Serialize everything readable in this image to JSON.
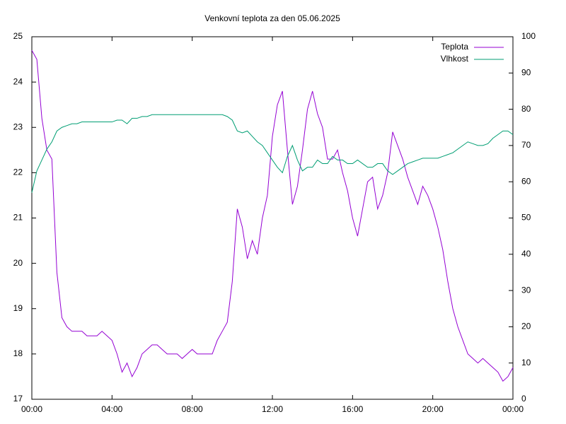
{
  "chart_data": {
    "type": "line",
    "title": "Venkovní teplota za den 05.06.2025",
    "x": [
      0,
      0.25,
      0.5,
      0.75,
      1,
      1.25,
      1.5,
      1.75,
      2,
      2.25,
      2.5,
      2.75,
      3,
      3.25,
      3.5,
      3.75,
      4,
      4.25,
      4.5,
      4.75,
      5,
      5.25,
      5.5,
      5.75,
      6,
      6.25,
      6.5,
      6.75,
      7,
      7.25,
      7.5,
      7.75,
      8,
      8.25,
      8.5,
      8.75,
      9,
      9.25,
      9.5,
      9.75,
      10,
      10.25,
      10.5,
      10.75,
      11,
      11.25,
      11.5,
      11.75,
      12,
      12.25,
      12.5,
      12.75,
      13,
      13.25,
      13.5,
      13.75,
      14,
      14.25,
      14.5,
      14.75,
      15,
      15.25,
      15.5,
      15.75,
      16,
      16.25,
      16.5,
      16.75,
      17,
      17.25,
      17.5,
      17.75,
      18,
      18.25,
      18.5,
      18.75,
      19,
      19.25,
      19.5,
      19.75,
      20,
      20.25,
      20.5,
      20.75,
      21,
      21.25,
      21.5,
      21.75,
      22,
      22.25,
      22.5,
      22.75,
      23,
      23.25,
      23.5,
      23.75,
      24
    ],
    "series": [
      {
        "name": "Teplota",
        "color": "#9400d3",
        "values": [
          24.7,
          24.5,
          23.2,
          22.5,
          22.3,
          19.8,
          18.8,
          18.6,
          18.5,
          18.5,
          18.5,
          18.4,
          18.4,
          18.4,
          18.5,
          18.4,
          18.3,
          18.0,
          17.6,
          17.8,
          17.5,
          17.7,
          18.0,
          18.1,
          18.2,
          18.2,
          18.1,
          18.0,
          18.0,
          18.0,
          17.9,
          18.0,
          18.1,
          18.0,
          18.0,
          18.0,
          18.0,
          18.3,
          18.5,
          18.7,
          19.6,
          21.2,
          20.8,
          20.1,
          20.5,
          20.2,
          21.0,
          21.5,
          22.8,
          23.5,
          23.8,
          22.5,
          21.3,
          21.7,
          22.5,
          23.4,
          23.8,
          23.3,
          23.0,
          22.3,
          22.3,
          22.5,
          22.0,
          21.6,
          21.0,
          20.6,
          21.2,
          21.8,
          21.9,
          21.2,
          21.5,
          22.0,
          22.9,
          22.6,
          22.3,
          21.9,
          21.6,
          21.3,
          21.7,
          21.5,
          21.2,
          20.8,
          20.3,
          19.6,
          19.0,
          18.6,
          18.3,
          18.0,
          17.9,
          17.8,
          17.9,
          17.8,
          17.7,
          17.6,
          17.4,
          17.5,
          17.7
        ]
      },
      {
        "name": "Vlhkost",
        "color": "#009e73",
        "axis": "y2",
        "values": [
          57,
          63,
          66,
          69,
          71,
          74,
          75,
          75.5,
          76,
          76,
          76.5,
          76.5,
          76.5,
          76.5,
          76.5,
          76.5,
          76.5,
          77,
          77,
          76,
          77.5,
          77.5,
          78,
          78,
          78.5,
          78.5,
          78.5,
          78.5,
          78.5,
          78.5,
          78.5,
          78.5,
          78.5,
          78.5,
          78.5,
          78.5,
          78.5,
          78.5,
          78.5,
          78,
          77,
          74,
          73.5,
          74,
          72.5,
          71,
          70,
          68,
          66,
          64,
          62.5,
          67,
          70,
          66,
          63,
          64,
          64,
          66,
          65,
          65,
          67,
          66,
          66,
          65,
          65,
          66,
          65,
          64,
          64,
          65,
          65,
          63,
          62,
          63,
          64,
          65,
          65.5,
          66,
          66.5,
          66.5,
          66.5,
          66.5,
          67,
          67.5,
          68,
          69,
          70,
          71,
          70.5,
          70,
          70,
          70.5,
          72,
          73,
          74,
          74,
          73
        ]
      }
    ],
    "xlim": [
      0,
      24
    ],
    "xticks": [
      {
        "value": 0,
        "label": "00:00"
      },
      {
        "value": 4,
        "label": "04:00"
      },
      {
        "value": 8,
        "label": "08:00"
      },
      {
        "value": 12,
        "label": "12:00"
      },
      {
        "value": 16,
        "label": "16:00"
      },
      {
        "value": 20,
        "label": "20:00"
      },
      {
        "value": 24,
        "label": "00:00"
      }
    ],
    "ylim": [
      17,
      25
    ],
    "yticks": [
      17,
      18,
      19,
      20,
      21,
      22,
      23,
      24,
      25
    ],
    "y2lim": [
      0,
      100
    ],
    "y2ticks": [
      0,
      10,
      20,
      30,
      40,
      50,
      60,
      70,
      80,
      90,
      100
    ],
    "grid": false,
    "legend": "top-right"
  }
}
